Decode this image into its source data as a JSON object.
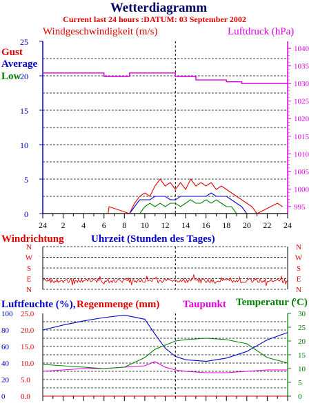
{
  "header": {
    "title": "Wetterdiagramm",
    "subtitle": "Current last 24 hours :DATUM: 03 September 2002"
  },
  "colors": {
    "blue": "#0000cc",
    "red": "#e00000",
    "magenta": "#e000e0",
    "green": "#008000",
    "black": "#000000"
  },
  "wind_chart": {
    "left_title": "Windgeschwindigkeit (m/s)",
    "right_title": "Luftdruck (hPa)",
    "legend": [
      "Gust",
      "Average",
      "Low"
    ],
    "y_ticks": [
      "0",
      "5",
      "10",
      "15",
      "20",
      "25"
    ],
    "y2_ticks": [
      "995",
      "1000",
      "1005",
      "1010",
      "1015",
      "1020",
      "1025",
      "1030",
      "1035",
      "1040"
    ],
    "x_ticks": [
      "24",
      "2",
      "4",
      "6",
      "8",
      "10",
      "12",
      "14",
      "16",
      "18",
      "20",
      "22",
      "24"
    ],
    "xlabel": "Uhrzeit (Stunden des Tages)"
  },
  "direction_chart": {
    "title": "Windrichtung",
    "y_ticks": [
      "N",
      "W",
      "S",
      "E",
      "N"
    ]
  },
  "humidity_chart": {
    "left_title_1": "Luftfeuchte (%),",
    "left_title_2": "Regenmenge (mm)",
    "dew_title": "Taupunkt",
    "temp_title": "Temperatur (",
    "temp_unit": "°C)",
    "y_ticks_humidity": [
      "0",
      "20",
      "40",
      "60",
      "80",
      "100"
    ],
    "y_ticks_rain": [
      "0.0",
      "5.0",
      "10.0",
      "15.0",
      "20.0",
      "25.0"
    ],
    "y2_ticks": [
      "0",
      "5",
      "10",
      "15",
      "20",
      "25",
      "30"
    ]
  },
  "chart_data": [
    {
      "type": "line",
      "title": "Windgeschwindigkeit (m/s)",
      "ylabel": "Windgeschwindigkeit (m/s)",
      "y2label": "Luftdruck (hPa)",
      "xlabel": "Uhrzeit (Stunden des Tages)",
      "ylim": [
        0,
        25
      ],
      "y2lim": [
        993,
        1042
      ],
      "x_hours_offset": [
        0,
        24
      ],
      "series": [
        {
          "name": "Gust",
          "color": "#e00000",
          "x": [
            6.4,
            6.5,
            8.5,
            9.0,
            9.5,
            10.0,
            10.5,
            11.0,
            11.5,
            12.0,
            12.5,
            13.0,
            13.5,
            14.0,
            14.5,
            15.0,
            15.5,
            16.0,
            16.5,
            17.0,
            17.5,
            18.0,
            18.5,
            19.0,
            19.5,
            20.0,
            20.5,
            21.0,
            23.0,
            23.5
          ],
          "values": [
            0,
            1,
            0,
            1.5,
            2.5,
            3,
            2.5,
            4,
            5,
            4,
            4.5,
            3.5,
            4.5,
            3.5,
            5,
            4,
            4.5,
            4,
            4.5,
            3.5,
            4,
            3.5,
            3,
            2.5,
            2,
            1.5,
            1,
            0,
            1.5,
            1
          ]
        },
        {
          "name": "Average",
          "color": "#0000cc",
          "x": [
            8.5,
            9.0,
            9.5,
            10.0,
            10.5,
            11.0,
            11.5,
            12.0,
            12.5,
            13.0,
            13.5,
            14.0,
            14.5,
            15.0,
            15.5,
            16.0,
            16.5,
            17.0,
            17.5,
            18.0,
            18.5,
            19.0,
            19.5,
            20.0
          ],
          "values": [
            0,
            1,
            2,
            2,
            2,
            2.5,
            2.5,
            2.5,
            2,
            2,
            2.5,
            2.5,
            2.5,
            2.5,
            2.5,
            2.5,
            3,
            2.5,
            2.5,
            2.5,
            2,
            1.5,
            1,
            0
          ]
        },
        {
          "name": "Low",
          "color": "#008000",
          "x": [
            9.5,
            10.0,
            10.5,
            11.0,
            11.5,
            12.0,
            12.5,
            13.0,
            13.5,
            14.0,
            14.5,
            15.0,
            15.5,
            16.0,
            16.5,
            17.0,
            17.5,
            18.0,
            18.5,
            19.0
          ],
          "values": [
            0,
            1,
            1.5,
            1,
            1.5,
            1,
            1.5,
            1.5,
            1,
            1.5,
            2,
            1.5,
            1.5,
            2,
            1.5,
            2,
            1.5,
            1,
            1,
            0
          ]
        },
        {
          "name": "Luftdruck (hPa)",
          "color": "#e000e0",
          "axis": "right",
          "x": [
            0,
            6.0,
            6.0,
            8.5,
            8.5,
            13.0,
            13.0,
            15.0,
            15.0,
            18.0,
            18.0,
            19.5,
            19.5,
            24
          ],
          "values": [
            1033,
            1033,
            1032,
            1032,
            1033,
            1033,
            1032,
            1032,
            1031,
            1031,
            1030.5,
            1030.5,
            1030,
            1030
          ]
        }
      ]
    },
    {
      "type": "line",
      "title": "Windrichtung",
      "y_categories": [
        "N",
        "W",
        "S",
        "E",
        "N"
      ],
      "series": [
        {
          "name": "Windrichtung",
          "color": "#e00000",
          "note": "mostly between E and N",
          "values_range": [
            "E",
            "N"
          ]
        }
      ]
    },
    {
      "type": "line",
      "title": "Luftfeuchte (%), Regenmenge (mm), Taupunkt, Temperatur (°C)",
      "ylim": [
        0,
        100
      ],
      "y2lim": [
        0,
        30
      ],
      "series": [
        {
          "name": "Luftfeuchte (%)",
          "color": "#0000cc",
          "axis": "left",
          "x": [
            0,
            2,
            4,
            6,
            8,
            10,
            11,
            12,
            13,
            14,
            16,
            18,
            20,
            22,
            24
          ],
          "values": [
            80,
            86,
            91,
            95,
            98,
            93,
            75,
            58,
            48,
            44,
            42,
            46,
            54,
            68,
            77
          ]
        },
        {
          "name": "Regenmenge (mm)",
          "color": "#e00000",
          "axis": "left",
          "x": [
            0,
            24
          ],
          "values": [
            0,
            0
          ]
        },
        {
          "name": "Taupunkt",
          "color": "#e000e0",
          "axis": "right",
          "x": [
            0,
            2,
            4,
            6,
            8,
            10,
            11,
            12,
            13,
            14,
            16,
            18,
            20,
            22,
            24
          ],
          "values": [
            9,
            9.5,
            10,
            10,
            10.5,
            11,
            12.5,
            10.5,
            9.5,
            9,
            8.5,
            8.5,
            9,
            9.5,
            9.5
          ]
        },
        {
          "name": "Temperatur (°C)",
          "color": "#008000",
          "axis": "right",
          "x": [
            0,
            2,
            4,
            6,
            8,
            10,
            11,
            12,
            13,
            14,
            16,
            18,
            20,
            22,
            24
          ],
          "values": [
            11.5,
            11,
            10.5,
            10,
            10.5,
            14,
            17,
            18.5,
            20,
            20.5,
            21,
            20.5,
            19,
            14,
            12
          ]
        }
      ]
    }
  ]
}
